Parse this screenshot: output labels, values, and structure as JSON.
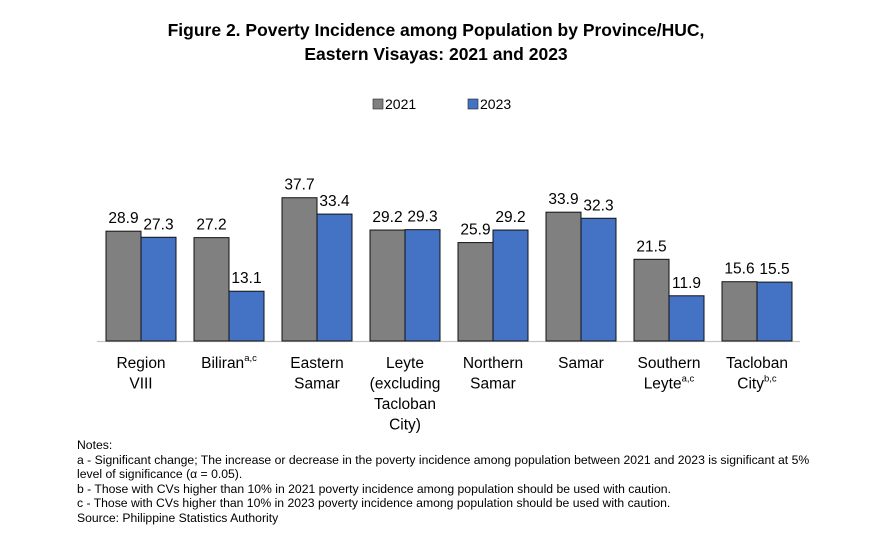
{
  "chart_data": {
    "type": "bar",
    "title": "Figure 2. Poverty Incidence among Population by Province/HUC,",
    "subtitle": "Eastern Visayas: 2021 and 2023",
    "categories": [
      {
        "lines": [
          "Region",
          "VIII"
        ],
        "sup": ""
      },
      {
        "lines": [
          "Biliran"
        ],
        "sup": "a,c"
      },
      {
        "lines": [
          "Eastern",
          "Samar"
        ],
        "sup": ""
      },
      {
        "lines": [
          "Leyte",
          "(excluding",
          "Tacloban",
          "City)"
        ],
        "sup": ""
      },
      {
        "lines": [
          "Northern",
          "Samar"
        ],
        "sup": ""
      },
      {
        "lines": [
          "Samar"
        ],
        "sup": ""
      },
      {
        "lines": [
          "Southern",
          "Leyte"
        ],
        "sup": "a,c"
      },
      {
        "lines": [
          "Tacloban",
          "City"
        ],
        "sup": "b,c"
      }
    ],
    "series": [
      {
        "name": "2021",
        "color": "#808080",
        "values": [
          28.9,
          27.2,
          37.7,
          29.2,
          25.9,
          33.9,
          21.5,
          15.6
        ]
      },
      {
        "name": "2023",
        "color": "#4472C4",
        "values": [
          27.3,
          13.1,
          33.4,
          29.3,
          29.2,
          32.3,
          11.9,
          15.5
        ]
      }
    ],
    "ylim": [
      0,
      40
    ],
    "grid": false,
    "legend": "top-center",
    "data_labels": true
  },
  "notes": {
    "heading": "Notes:",
    "items": [
      "a - Significant change; The increase or decrease in the poverty incidence among population between 2021 and 2023 is significant at 5% level of significance (α = 0.05).",
      "b - Those with CVs higher than 10% in 2021 poverty incidence among population should be used with caution.",
      "c - Those with CVs higher than 10% in 2023 poverty incidence among population should be used with caution."
    ],
    "source": "Source: Philippine Statistics Authority"
  }
}
